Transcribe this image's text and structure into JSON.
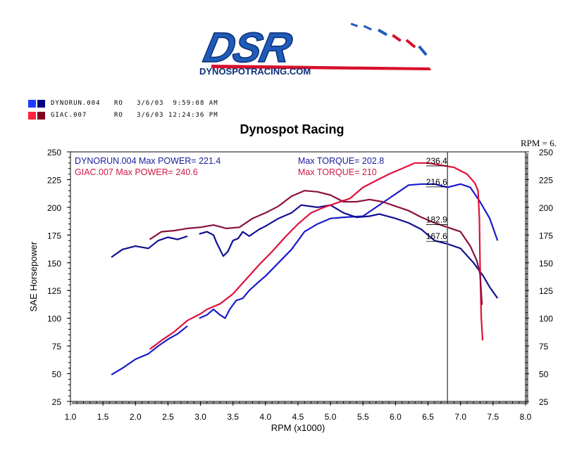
{
  "logo": {
    "brand": "DSR",
    "tagline": "DYNOSPOTRACING.COM"
  },
  "legend": [
    {
      "run": "DYNORUN.004",
      "info": "RO   3/6/03  9:59:08 AM",
      "colors": [
        "#1e3cff",
        "#000080"
      ]
    },
    {
      "run": "GIAC.007",
      "info": "RO   3/6/03 12:24:36 PM",
      "colors": [
        "#ff2040",
        "#800020"
      ]
    }
  ],
  "colors": {
    "blue_power": "#1a1acc",
    "navy_torque": "#101090",
    "red_power": "#e0103a",
    "maroon_torque": "#8a1040",
    "text_blue": "#1a1aa0",
    "text_red": "#cc1a44"
  },
  "chart_data": {
    "type": "line",
    "title": "Dynospot Racing",
    "xlabel": "RPM (x1000)",
    "ylabel": "SAE Horsepower",
    "xlim": [
      1.0,
      8.0
    ],
    "ylim": [
      25,
      250
    ],
    "x_ticks": [
      "1.0",
      "1.5",
      "2.0",
      "2.5",
      "3.0",
      "3.5",
      "4.0",
      "4.5",
      "5.0",
      "5.5",
      "6.0",
      "6.5",
      "7.0",
      "7.5",
      "8.0"
    ],
    "y_ticks": [
      "25",
      "50",
      "75",
      "100",
      "125",
      "150",
      "175",
      "200",
      "225",
      "250"
    ],
    "cursor": {
      "label": "RPM = 6.",
      "x": 6.8
    },
    "info_lines": [
      {
        "text": "DYNORUN.004  Max POWER= 221.4",
        "color": "blue"
      },
      {
        "text": "Max TORQUE= 202.8",
        "color": "blue"
      },
      {
        "text": "GIAC.007  Max POWER= 240.6",
        "color": "red"
      },
      {
        "text": "Max TORQUE= 210",
        "color": "red"
      }
    ],
    "value_labels": [
      {
        "text": "236.4",
        "x": 6.6,
        "y": 238
      },
      {
        "text": "216.6",
        "x": 6.6,
        "y": 219
      },
      {
        "text": "182.9",
        "x": 6.6,
        "y": 185
      },
      {
        "text": "167.6",
        "x": 6.6,
        "y": 170
      }
    ],
    "series": [
      {
        "name": "DYNORUN.004",
        "role": "power",
        "color": "#1a1acc",
        "segments": [
          [
            [
              1.63,
              49
            ],
            [
              1.8,
              55
            ],
            [
              2.0,
              63
            ],
            [
              2.2,
              68
            ],
            [
              2.35,
              75
            ],
            [
              2.5,
              81
            ],
            [
              2.65,
              86
            ],
            [
              2.8,
              93
            ]
          ],
          [
            [
              2.98,
              100
            ],
            [
              3.1,
              103
            ],
            [
              3.2,
              108
            ],
            [
              3.3,
              103
            ],
            [
              3.38,
              100
            ],
            [
              3.45,
              108
            ],
            [
              3.55,
              116
            ],
            [
              3.65,
              118
            ],
            [
              3.75,
              125
            ],
            [
              3.9,
              133
            ],
            [
              4.0,
              138
            ],
            [
              4.2,
              150
            ],
            [
              4.4,
              162
            ],
            [
              4.6,
              178
            ],
            [
              4.8,
              185
            ],
            [
              5.0,
              190
            ],
            [
              5.2,
              191
            ],
            [
              5.5,
              192
            ],
            [
              5.7,
              200
            ],
            [
              6.0,
              212
            ],
            [
              6.2,
              220
            ],
            [
              6.4,
              221
            ],
            [
              6.6,
              221
            ],
            [
              6.8,
              218
            ],
            [
              7.0,
              221
            ],
            [
              7.15,
              218
            ],
            [
              7.3,
              205
            ],
            [
              7.45,
              190
            ],
            [
              7.57,
              170
            ]
          ]
        ]
      },
      {
        "name": "DYNORUN.004",
        "role": "torque",
        "color": "#101090",
        "segments": [
          [
            [
              1.63,
              155
            ],
            [
              1.8,
              162
            ],
            [
              2.0,
              165
            ],
            [
              2.2,
              163
            ],
            [
              2.35,
              170
            ],
            [
              2.5,
              173
            ],
            [
              2.65,
              171
            ],
            [
              2.8,
              174
            ]
          ],
          [
            [
              2.98,
              176
            ],
            [
              3.1,
              178
            ],
            [
              3.2,
              175
            ],
            [
              3.25,
              168
            ],
            [
              3.35,
              156
            ],
            [
              3.42,
              160
            ],
            [
              3.5,
              170
            ],
            [
              3.58,
              172
            ],
            [
              3.65,
              178
            ],
            [
              3.75,
              174
            ],
            [
              3.9,
              180
            ],
            [
              4.0,
              183
            ],
            [
              4.2,
              190
            ],
            [
              4.4,
              195
            ],
            [
              4.55,
              202
            ],
            [
              4.8,
              200
            ],
            [
              5.0,
              202
            ],
            [
              5.2,
              195
            ],
            [
              5.4,
              191
            ],
            [
              5.6,
              192
            ],
            [
              5.75,
              194
            ],
            [
              6.0,
              190
            ],
            [
              6.2,
              186
            ],
            [
              6.4,
              180
            ],
            [
              6.6,
              170
            ],
            [
              6.8,
              167
            ],
            [
              7.0,
              163
            ],
            [
              7.2,
              150
            ],
            [
              7.35,
              138
            ],
            [
              7.45,
              128
            ],
            [
              7.57,
              118
            ]
          ]
        ]
      },
      {
        "name": "GIAC.007",
        "role": "power",
        "color": "#e0103a",
        "segments": [
          [
            [
              2.22,
              72
            ],
            [
              2.4,
              80
            ],
            [
              2.6,
              88
            ],
            [
              2.8,
              98
            ],
            [
              3.0,
              104
            ],
            [
              3.1,
              108
            ],
            [
              3.3,
              113
            ],
            [
              3.5,
              122
            ],
            [
              3.7,
              135
            ],
            [
              3.9,
              148
            ],
            [
              4.1,
              160
            ],
            [
              4.3,
              173
            ],
            [
              4.5,
              185
            ],
            [
              4.7,
              195
            ],
            [
              4.9,
              200
            ],
            [
              5.1,
              204
            ],
            [
              5.3,
              208
            ],
            [
              5.5,
              218
            ],
            [
              5.7,
              224
            ],
            [
              5.9,
              230
            ],
            [
              6.1,
              235
            ],
            [
              6.3,
              240
            ],
            [
              6.5,
              240
            ],
            [
              6.7,
              238
            ],
            [
              6.9,
              236
            ],
            [
              7.1,
              230
            ],
            [
              7.22,
              222
            ],
            [
              7.27,
              215
            ],
            [
              7.29,
              190
            ],
            [
              7.3,
              150
            ],
            [
              7.32,
              100
            ],
            [
              7.34,
              80
            ]
          ]
        ]
      },
      {
        "name": "GIAC.007",
        "role": "torque",
        "color": "#8a1040",
        "segments": [
          [
            [
              2.22,
              171
            ],
            [
              2.4,
              178
            ],
            [
              2.6,
              179
            ],
            [
              2.8,
              181
            ],
            [
              3.0,
              182
            ],
            [
              3.2,
              184
            ],
            [
              3.4,
              181
            ],
            [
              3.6,
              182
            ],
            [
              3.8,
              190
            ],
            [
              4.0,
              195
            ],
            [
              4.2,
              201
            ],
            [
              4.4,
              210
            ],
            [
              4.6,
              215
            ],
            [
              4.8,
              214
            ],
            [
              5.0,
              211
            ],
            [
              5.2,
              205
            ],
            [
              5.4,
              205
            ],
            [
              5.6,
              207
            ],
            [
              5.8,
              205
            ],
            [
              6.0,
              201
            ],
            [
              6.2,
              197
            ],
            [
              6.4,
              191
            ],
            [
              6.6,
              186
            ],
            [
              6.8,
              182
            ],
            [
              7.0,
              178
            ],
            [
              7.15,
              165
            ],
            [
              7.25,
              152
            ],
            [
              7.3,
              140
            ],
            [
              7.33,
              112
            ]
          ]
        ]
      }
    ]
  }
}
